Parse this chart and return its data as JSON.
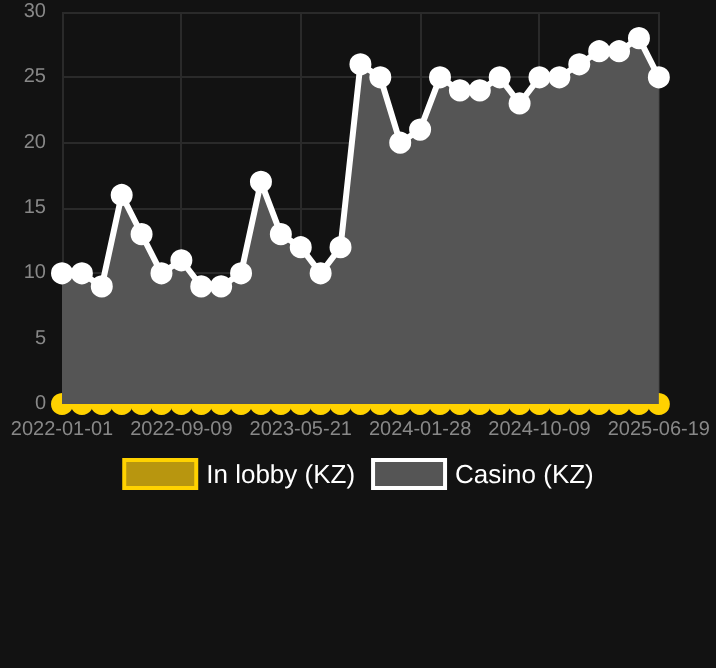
{
  "chart_data": {
    "type": "area",
    "categories": [
      "2022-01-01",
      null,
      null,
      null,
      null,
      null,
      "2022-09-09",
      null,
      null,
      null,
      null,
      null,
      "2023-05-21",
      null,
      null,
      null,
      null,
      null,
      "2024-01-28",
      null,
      null,
      null,
      null,
      null,
      "2024-10-09",
      null,
      null,
      null,
      null,
      null,
      "2025-06-19"
    ],
    "series": [
      {
        "name": "In lobby (KZ)",
        "type": "line",
        "color": "#ffd200",
        "values": [
          0,
          0,
          0,
          0,
          0,
          0,
          0,
          0,
          0,
          0,
          0,
          0,
          0,
          0,
          0,
          0,
          0,
          0,
          0,
          0,
          0,
          0,
          0,
          0,
          0,
          0,
          0,
          0,
          0,
          0,
          0
        ]
      },
      {
        "name": "Casino (KZ)",
        "color": "#ffffff",
        "values": [
          10,
          10,
          9,
          16,
          13,
          10,
          11,
          9,
          9,
          10,
          17,
          13,
          12,
          10,
          12,
          26,
          25,
          20,
          21,
          25,
          24,
          24,
          25,
          23,
          25,
          25,
          26,
          27,
          27,
          28,
          25
        ]
      }
    ],
    "ylim": [
      0,
      30
    ],
    "yticks": [
      0,
      5,
      10,
      15,
      20,
      25,
      30
    ],
    "grid": true,
    "legend": "bottom",
    "marker": "circle",
    "line_style": "solid"
  }
}
